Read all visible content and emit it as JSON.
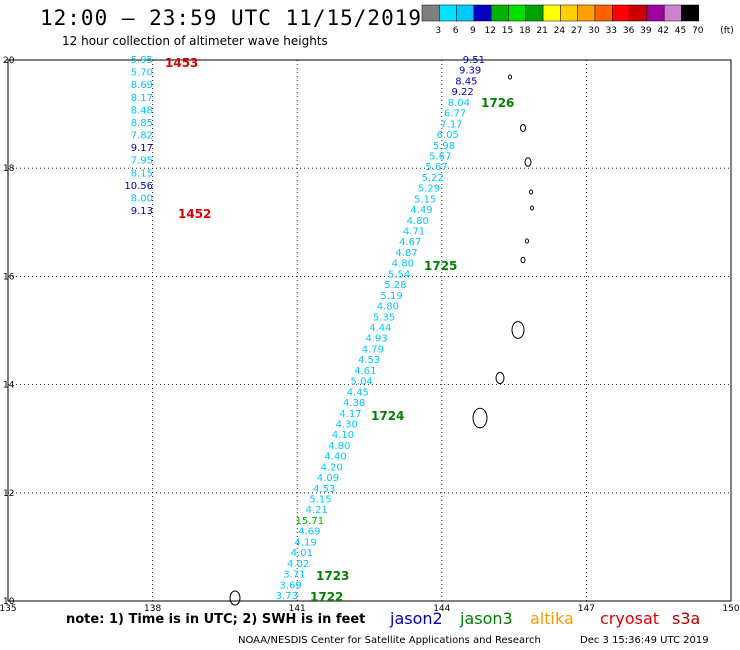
{
  "header": {
    "title": "12:00 – 23:59 UTC 11/15/2019",
    "subtitle": "12 hour collection of altimeter wave heights"
  },
  "colorbar": {
    "unit": "(ft)",
    "ticks": [
      "3",
      "6",
      "9",
      "12",
      "15",
      "18",
      "21",
      "24",
      "27",
      "30",
      "33",
      "36",
      "39",
      "42",
      "45",
      "70"
    ],
    "colors": [
      "#7f7f7f",
      "#00e0ff",
      "#00c8ff",
      "#0000c0",
      "#00b400",
      "#00e000",
      "#00a000",
      "#ffff00",
      "#ffd000",
      "#ffa000",
      "#ff6000",
      "#ff0000",
      "#c80000",
      "#a000a0",
      "#d080d0",
      "#000000"
    ]
  },
  "map": {
    "lat_labels": [
      "20",
      "18",
      "16",
      "14",
      "12",
      "10"
    ],
    "lon_labels": [
      "135",
      "138",
      "141",
      "144",
      "147",
      "150"
    ],
    "lat_range": [
      10,
      20
    ],
    "lon_range": [
      135,
      150
    ]
  },
  "track_west": {
    "values": [
      "5.95",
      "5.70",
      "8.69",
      "8.17",
      "8.48",
      "8.85",
      "7.82",
      "9.17",
      "7.95",
      "8.15",
      "10.56",
      "8.00",
      "9.13"
    ],
    "colors": [
      "#00c8ff",
      "#00c8ff",
      "#00c8ff",
      "#00c8ff",
      "#00c8ff",
      "#00c8ff",
      "#00c8ff",
      "#0000c0",
      "#00c8ff",
      "#00c8ff",
      "#0000c0",
      "#00c8ff",
      "#0000c0"
    ],
    "time_labels": [
      {
        "text": "1453",
        "color": "#e00000"
      },
      {
        "text": "1452",
        "color": "#e00000"
      }
    ]
  },
  "track_east": {
    "values": [
      "9.51",
      "9.39",
      "8.45",
      "9.22",
      "8.04",
      "6.77",
      "7.17",
      "6.05",
      "5.98",
      "5.67",
      "5.67",
      "5.22",
      "5.29",
      "5.15",
      "4.49",
      "4.80",
      "4.71",
      "4.67",
      "4.87",
      "4.80",
      "5.54",
      "5.28",
      "5.19",
      "4.80",
      "5.35",
      "4.44",
      "4.93",
      "4.79",
      "4.53",
      "4.61",
      "5.04",
      "4.45",
      "4.38",
      "4.17",
      "4.30",
      "4.10",
      "4.80",
      "4.40",
      "4.20",
      "4.09",
      "4.53",
      "5.15",
      "4.21",
      "15.71",
      "4.69",
      "4.19",
      "4.01",
      "4.02",
      "3.71",
      "3.69",
      "3.73"
    ],
    "colors": [
      "#0000c0",
      "#0000c0",
      "#0000c0",
      "#0000c0",
      "#00c8ff",
      "#00c8ff",
      "#00c8ff",
      "#00c8ff",
      "#00c8ff",
      "#00c8ff",
      "#00c8ff",
      "#00c8ff",
      "#00c8ff",
      "#00c8ff",
      "#00c8ff",
      "#00c8ff",
      "#00c8ff",
      "#00c8ff",
      "#00c8ff",
      "#00c8ff",
      "#00c8ff",
      "#00c8ff",
      "#00c8ff",
      "#00c8ff",
      "#00c8ff",
      "#00c8ff",
      "#00c8ff",
      "#00c8ff",
      "#00c8ff",
      "#00c8ff",
      "#00c8ff",
      "#00c8ff",
      "#00c8ff",
      "#00c8ff",
      "#00c8ff",
      "#00c8ff",
      "#00c8ff",
      "#00c8ff",
      "#00c8ff",
      "#00c8ff",
      "#00c8ff",
      "#00c8ff",
      "#00c8ff",
      "#00b400",
      "#00c8ff",
      "#00c8ff",
      "#00c8ff",
      "#00c8ff",
      "#00c8ff",
      "#00c8ff",
      "#00c8ff"
    ],
    "time_labels": [
      {
        "text": "1726",
        "color": "#008000"
      },
      {
        "text": "1725",
        "color": "#008000"
      },
      {
        "text": "1724",
        "color": "#008000"
      },
      {
        "text": "1723",
        "color": "#008000"
      },
      {
        "text": "1722",
        "color": "#008000"
      }
    ]
  },
  "note": "note: 1) Time is in UTC; 2) SWH is in feet",
  "satellites": [
    {
      "name": "jason2",
      "color": "#0000c0"
    },
    {
      "name": "jason3",
      "color": "#008000"
    },
    {
      "name": "altika",
      "color": "#ff9900"
    },
    {
      "name": "cryosat",
      "color": "#e00000"
    },
    {
      "name": "s3a",
      "color": "#b00000"
    }
  ],
  "footer": {
    "org": "NOAA/NESDIS Center for Satellite Applications and Research",
    "timestamp": "Dec  3 15:36:49 UTC 2019"
  }
}
